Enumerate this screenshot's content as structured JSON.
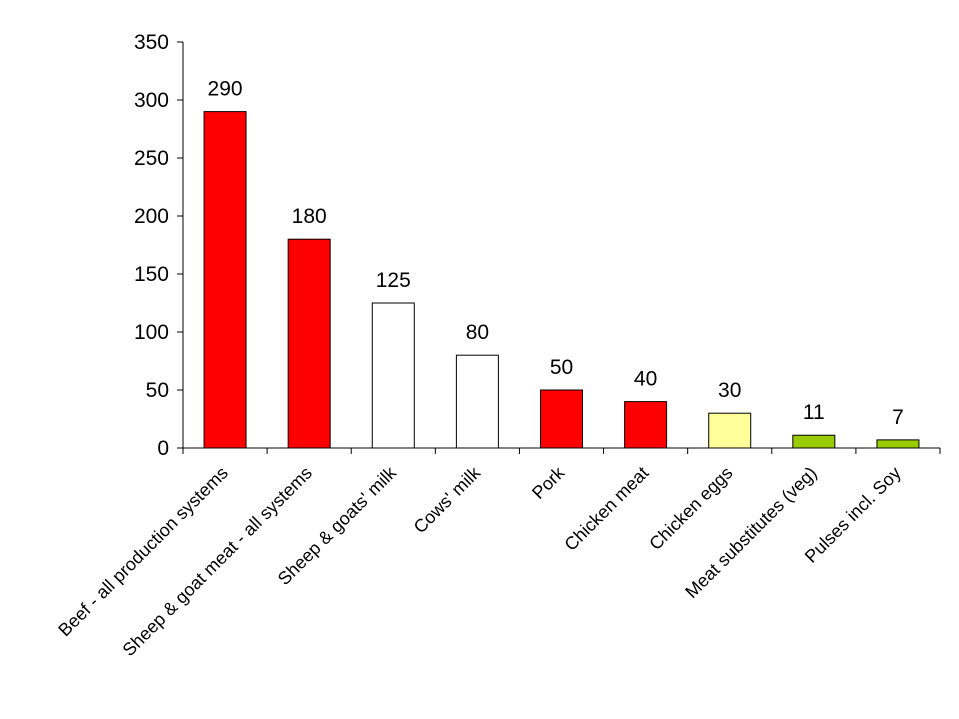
{
  "chart_data": {
    "type": "bar",
    "title": "",
    "xlabel": "",
    "ylabel": "",
    "ylim": [
      0,
      350
    ],
    "y_ticks": [
      0,
      50,
      100,
      150,
      200,
      250,
      300,
      350
    ],
    "grid": false,
    "legend": "none",
    "categories": [
      "Beef - all production systems",
      "Sheep & goat meat - all systems",
      "Sheep & goats' milk",
      "Cows' milk",
      "Pork",
      "Chicken meat",
      "Chicken eggs",
      "Meat substitutes (veg)",
      "Pulses incl. Soy"
    ],
    "values": [
      290,
      180,
      125,
      80,
      50,
      40,
      30,
      11,
      7
    ],
    "data_labels": [
      "290",
      "180",
      "125",
      "80",
      "50",
      "40",
      "30",
      "11",
      "7"
    ],
    "bar_colors": [
      "#ff0000",
      "#ff0000",
      "#ffffff",
      "#ffffff",
      "#ff0000",
      "#ff0000",
      "#ffff99",
      "#99cc00",
      "#99cc00"
    ]
  }
}
